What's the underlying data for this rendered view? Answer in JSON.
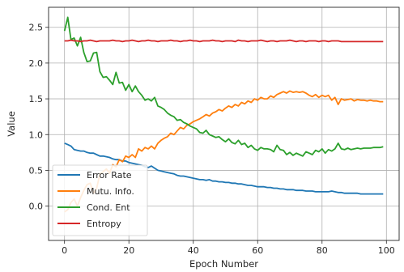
{
  "chart_data": {
    "type": "line",
    "title": "",
    "xlabel": "Epoch Number",
    "ylabel": "Value",
    "xlim": [
      -4.95,
      103.95
    ],
    "ylim": [
      -0.48,
      2.78
    ],
    "xticks": [
      0,
      20,
      40,
      60,
      80,
      100
    ],
    "yticks": [
      0.0,
      0.5,
      1.0,
      1.5,
      2.0,
      2.5
    ],
    "xtick_labels": [
      "0",
      "20",
      "40",
      "60",
      "80",
      "100"
    ],
    "ytick_labels": [
      "0.0",
      "0.5",
      "1.0",
      "1.5",
      "2.0",
      "2.5"
    ],
    "grid": true,
    "legend_position": "lower-left",
    "series": [
      {
        "name": "Error Rate",
        "color": "#1f77b4",
        "x": [
          0,
          1,
          2,
          3,
          4,
          5,
          6,
          7,
          8,
          9,
          10,
          11,
          12,
          13,
          14,
          15,
          16,
          17,
          18,
          19,
          20,
          21,
          22,
          23,
          24,
          25,
          26,
          27,
          28,
          29,
          30,
          31,
          32,
          33,
          34,
          35,
          36,
          37,
          38,
          39,
          40,
          41,
          42,
          43,
          44,
          45,
          46,
          47,
          48,
          49,
          50,
          51,
          52,
          53,
          54,
          55,
          56,
          57,
          58,
          59,
          60,
          61,
          62,
          63,
          64,
          65,
          66,
          67,
          68,
          69,
          70,
          71,
          72,
          73,
          74,
          75,
          76,
          77,
          78,
          79,
          80,
          81,
          82,
          83,
          84,
          85,
          86,
          87,
          88,
          89,
          90,
          91,
          92,
          93,
          94,
          95,
          96,
          97,
          98,
          99
        ],
        "y": [
          0.88,
          0.86,
          0.84,
          0.79,
          0.78,
          0.77,
          0.77,
          0.75,
          0.74,
          0.74,
          0.72,
          0.7,
          0.7,
          0.69,
          0.68,
          0.66,
          0.65,
          0.65,
          0.63,
          0.63,
          0.61,
          0.6,
          0.59,
          0.58,
          0.57,
          0.55,
          0.54,
          0.56,
          0.53,
          0.5,
          0.49,
          0.48,
          0.47,
          0.46,
          0.45,
          0.43,
          0.42,
          0.42,
          0.41,
          0.4,
          0.39,
          0.38,
          0.37,
          0.37,
          0.36,
          0.37,
          0.35,
          0.35,
          0.34,
          0.34,
          0.33,
          0.33,
          0.32,
          0.32,
          0.31,
          0.31,
          0.3,
          0.29,
          0.29,
          0.28,
          0.27,
          0.27,
          0.27,
          0.26,
          0.26,
          0.25,
          0.25,
          0.24,
          0.24,
          0.23,
          0.23,
          0.23,
          0.22,
          0.22,
          0.22,
          0.21,
          0.21,
          0.21,
          0.2,
          0.2,
          0.2,
          0.2,
          0.2,
          0.21,
          0.2,
          0.19,
          0.19,
          0.18,
          0.18,
          0.18,
          0.18,
          0.18,
          0.17,
          0.17,
          0.17,
          0.17,
          0.17,
          0.17,
          0.17,
          0.17
        ]
      },
      {
        "name": "Mutu. Info.",
        "color": "#ff7f0e",
        "x": [
          0,
          1,
          2,
          3,
          4,
          5,
          6,
          7,
          8,
          9,
          10,
          11,
          12,
          13,
          14,
          15,
          16,
          17,
          18,
          19,
          20,
          21,
          22,
          23,
          24,
          25,
          26,
          27,
          28,
          29,
          30,
          31,
          32,
          33,
          34,
          35,
          36,
          37,
          38,
          39,
          40,
          41,
          42,
          43,
          44,
          45,
          46,
          47,
          48,
          49,
          50,
          51,
          52,
          53,
          54,
          55,
          56,
          57,
          58,
          59,
          60,
          61,
          62,
          63,
          64,
          65,
          66,
          67,
          68,
          69,
          70,
          71,
          72,
          73,
          74,
          75,
          76,
          77,
          78,
          79,
          80,
          81,
          82,
          83,
          84,
          85,
          86,
          87,
          88,
          89,
          90,
          91,
          92,
          93,
          94,
          95,
          96,
          97,
          98,
          99
        ],
        "y": [
          -0.08,
          -0.05,
          0.05,
          0.1,
          0.0,
          0.12,
          0.22,
          0.3,
          0.32,
          0.18,
          0.25,
          0.45,
          0.48,
          0.52,
          0.46,
          0.58,
          0.55,
          0.65,
          0.62,
          0.7,
          0.68,
          0.72,
          0.68,
          0.8,
          0.77,
          0.82,
          0.8,
          0.84,
          0.8,
          0.88,
          0.92,
          0.95,
          0.97,
          1.02,
          1.0,
          1.05,
          1.1,
          1.08,
          1.13,
          1.15,
          1.18,
          1.2,
          1.22,
          1.25,
          1.28,
          1.26,
          1.3,
          1.32,
          1.35,
          1.33,
          1.37,
          1.4,
          1.38,
          1.42,
          1.4,
          1.45,
          1.43,
          1.47,
          1.45,
          1.5,
          1.48,
          1.52,
          1.5,
          1.5,
          1.54,
          1.52,
          1.56,
          1.58,
          1.6,
          1.58,
          1.61,
          1.59,
          1.6,
          1.59,
          1.6,
          1.58,
          1.55,
          1.53,
          1.56,
          1.52,
          1.55,
          1.53,
          1.55,
          1.48,
          1.52,
          1.42,
          1.5,
          1.48,
          1.49,
          1.5,
          1.47,
          1.49,
          1.48,
          1.48,
          1.47,
          1.48,
          1.47,
          1.47,
          1.46,
          1.46
        ]
      },
      {
        "name": "Cond. Ent",
        "color": "#2ca02c",
        "x": [
          0,
          1,
          2,
          3,
          4,
          5,
          6,
          7,
          8,
          9,
          10,
          11,
          12,
          13,
          14,
          15,
          16,
          17,
          18,
          19,
          20,
          21,
          22,
          23,
          24,
          25,
          26,
          27,
          28,
          29,
          30,
          31,
          32,
          33,
          34,
          35,
          36,
          37,
          38,
          39,
          40,
          41,
          42,
          43,
          44,
          45,
          46,
          47,
          48,
          49,
          50,
          51,
          52,
          53,
          54,
          55,
          56,
          57,
          58,
          59,
          60,
          61,
          62,
          63,
          64,
          65,
          66,
          67,
          68,
          69,
          70,
          71,
          72,
          73,
          74,
          75,
          76,
          77,
          78,
          79,
          80,
          81,
          82,
          83,
          84,
          85,
          86,
          87,
          88,
          89,
          90,
          91,
          92,
          93,
          94,
          95,
          96,
          97,
          98,
          99
        ],
        "y": [
          2.45,
          2.64,
          2.33,
          2.35,
          2.24,
          2.36,
          2.15,
          2.02,
          2.03,
          2.14,
          2.15,
          1.88,
          1.8,
          1.81,
          1.76,
          1.7,
          1.87,
          1.72,
          1.73,
          1.62,
          1.7,
          1.6,
          1.68,
          1.6,
          1.55,
          1.48,
          1.5,
          1.47,
          1.52,
          1.4,
          1.38,
          1.35,
          1.3,
          1.27,
          1.25,
          1.2,
          1.21,
          1.17,
          1.15,
          1.12,
          1.1,
          1.08,
          1.03,
          1.02,
          1.06,
          1.0,
          0.98,
          0.96,
          0.97,
          0.93,
          0.9,
          0.94,
          0.89,
          0.87,
          0.92,
          0.86,
          0.88,
          0.82,
          0.85,
          0.8,
          0.78,
          0.82,
          0.8,
          0.8,
          0.79,
          0.76,
          0.85,
          0.79,
          0.78,
          0.72,
          0.75,
          0.71,
          0.74,
          0.72,
          0.7,
          0.76,
          0.74,
          0.72,
          0.78,
          0.76,
          0.8,
          0.74,
          0.79,
          0.77,
          0.8,
          0.88,
          0.8,
          0.79,
          0.81,
          0.79,
          0.8,
          0.81,
          0.8,
          0.81,
          0.81,
          0.81,
          0.82,
          0.82,
          0.82,
          0.83
        ]
      },
      {
        "name": "Entropy",
        "color": "#d62728",
        "x": [
          0,
          1,
          2,
          3,
          4,
          5,
          6,
          7,
          8,
          9,
          10,
          11,
          12,
          13,
          14,
          15,
          16,
          17,
          18,
          19,
          20,
          21,
          22,
          23,
          24,
          25,
          26,
          27,
          28,
          29,
          30,
          31,
          32,
          33,
          34,
          35,
          36,
          37,
          38,
          39,
          40,
          41,
          42,
          43,
          44,
          45,
          46,
          47,
          48,
          49,
          50,
          51,
          52,
          53,
          54,
          55,
          56,
          57,
          58,
          59,
          60,
          61,
          62,
          63,
          64,
          65,
          66,
          67,
          68,
          69,
          70,
          71,
          72,
          73,
          74,
          75,
          76,
          77,
          78,
          79,
          80,
          81,
          82,
          83,
          84,
          85,
          86,
          87,
          88,
          89,
          90,
          91,
          92,
          93,
          94,
          95,
          96,
          97,
          98,
          99
        ],
        "y": [
          2.31,
          2.31,
          2.32,
          2.31,
          2.31,
          2.3,
          2.31,
          2.31,
          2.32,
          2.31,
          2.3,
          2.31,
          2.31,
          2.31,
          2.31,
          2.32,
          2.31,
          2.31,
          2.3,
          2.31,
          2.31,
          2.32,
          2.31,
          2.3,
          2.31,
          2.31,
          2.32,
          2.31,
          2.31,
          2.3,
          2.31,
          2.31,
          2.31,
          2.32,
          2.31,
          2.31,
          2.3,
          2.31,
          2.31,
          2.32,
          2.31,
          2.31,
          2.3,
          2.31,
          2.31,
          2.31,
          2.32,
          2.31,
          2.31,
          2.3,
          2.31,
          2.31,
          2.31,
          2.3,
          2.32,
          2.31,
          2.31,
          2.3,
          2.31,
          2.31,
          2.31,
          2.32,
          2.31,
          2.3,
          2.31,
          2.31,
          2.3,
          2.31,
          2.31,
          2.31,
          2.32,
          2.31,
          2.3,
          2.31,
          2.31,
          2.3,
          2.31,
          2.31,
          2.31,
          2.3,
          2.31,
          2.31,
          2.3,
          2.31,
          2.31,
          2.31,
          2.3,
          2.3,
          2.3,
          2.3,
          2.3,
          2.3,
          2.3,
          2.3,
          2.3,
          2.3,
          2.3,
          2.3,
          2.3,
          2.3
        ]
      }
    ]
  }
}
